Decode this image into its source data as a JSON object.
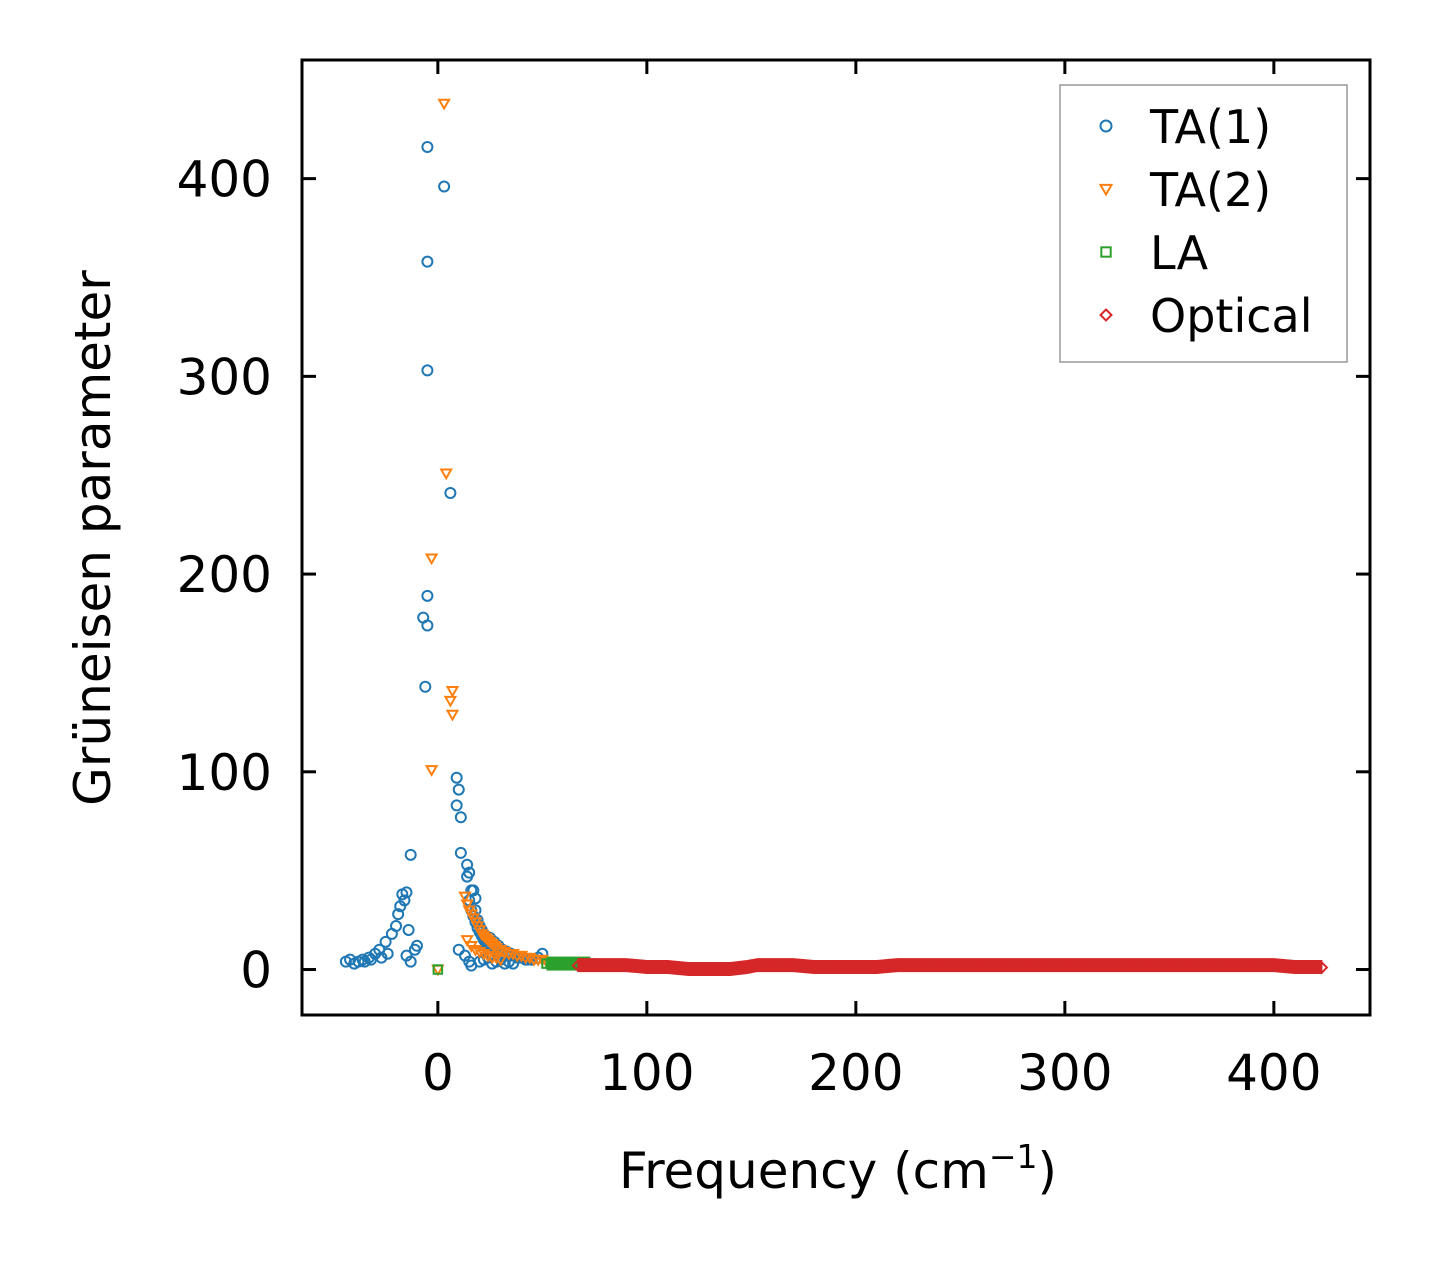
{
  "chart_data": {
    "type": "scatter",
    "title": "",
    "xlabel": "Frequency (cm",
    "xlabel_sup": "−1",
    "xlabel_close": ")",
    "ylabel": "Grüneisen parameter",
    "xlim": [
      -65,
      446
    ],
    "ylim": [
      -23,
      460
    ],
    "xticks": [
      0,
      100,
      200,
      300,
      400
    ],
    "xtick_labels": [
      "0",
      "100",
      "200",
      "300",
      "400"
    ],
    "yticks": [
      0,
      100,
      200,
      300,
      400
    ],
    "ytick_labels": [
      "0",
      "100",
      "200",
      "300",
      "400"
    ],
    "grid": false,
    "legend_position": "top-right",
    "series": [
      {
        "name": "TA(1)",
        "marker": "circle",
        "color": "#1f77b4",
        "x": [
          -5,
          3,
          -5,
          -5,
          6,
          -5,
          -7,
          -5,
          -6,
          9,
          10,
          9,
          11,
          11,
          14,
          15,
          14,
          16,
          17,
          18,
          -13,
          -15,
          -17,
          -16,
          -18,
          -19,
          -20,
          -14,
          -11,
          -15,
          -10,
          -13,
          -22,
          -25,
          -28,
          -30,
          -33,
          -36,
          -38,
          -42,
          -44,
          -40,
          -35,
          -32,
          -27,
          -24,
          10,
          13,
          15,
          16,
          18,
          19,
          20,
          21,
          22,
          23,
          24,
          25,
          26,
          27,
          28,
          30,
          31,
          33,
          35,
          38,
          40,
          42,
          45,
          48,
          50,
          20,
          22,
          24,
          26,
          28,
          30,
          32,
          34,
          36,
          25,
          27,
          29,
          31,
          33,
          35,
          37,
          39,
          41,
          43,
          45,
          15,
          16,
          17,
          18,
          19,
          20,
          21,
          22,
          23,
          24
        ],
        "y": [
          416,
          396,
          358,
          303,
          241,
          189,
          178,
          174,
          143,
          97,
          91,
          83,
          77,
          59,
          53,
          49,
          47,
          40,
          40,
          36,
          58,
          39,
          38,
          35,
          32,
          28,
          22,
          20,
          10,
          7,
          12,
          4,
          18,
          14,
          10,
          8,
          6,
          5,
          4,
          5,
          4,
          3,
          4,
          5,
          6,
          8,
          10,
          7,
          4,
          2,
          30,
          25,
          22,
          20,
          18,
          15,
          13,
          12,
          11,
          10,
          9,
          8,
          8,
          7,
          7,
          6,
          6,
          5,
          5,
          6,
          8,
          4,
          5,
          6,
          3,
          4,
          5,
          3,
          4,
          3,
          16,
          14,
          12,
          10,
          9,
          8,
          7,
          6,
          6,
          5,
          5,
          35,
          30,
          27,
          24,
          21,
          19,
          17,
          15,
          13,
          12
        ]
      },
      {
        "name": "TA(2)",
        "marker": "triangle-down",
        "color": "#ff7f0e",
        "x": [
          3,
          4,
          -3,
          7,
          6,
          7,
          -3,
          0,
          13,
          14,
          15,
          16,
          17,
          18,
          19,
          20,
          21,
          22,
          23,
          24,
          25,
          26,
          27,
          28,
          30,
          32,
          34,
          36,
          38,
          40,
          42,
          44,
          46,
          48,
          50,
          52,
          54,
          14,
          16,
          18,
          20,
          22,
          24,
          26,
          28,
          30
        ],
        "y": [
          438,
          251,
          208,
          141,
          136,
          129,
          101,
          0,
          37,
          33,
          30,
          28,
          26,
          24,
          22,
          20,
          18,
          17,
          16,
          15,
          14,
          13,
          12,
          11,
          10,
          9,
          8,
          8,
          7,
          7,
          6,
          6,
          5,
          5,
          5,
          4,
          4,
          15,
          12,
          10,
          9,
          8,
          7,
          6,
          6,
          5
        ]
      },
      {
        "name": "LA",
        "marker": "square",
        "color": "#2ca02c",
        "x": [
          0,
          52,
          54,
          56,
          58,
          60,
          62,
          64,
          66,
          68,
          70,
          72,
          73
        ],
        "y": [
          0,
          3,
          3,
          3,
          3,
          3,
          3,
          3,
          3,
          3,
          3,
          3,
          3
        ]
      },
      {
        "name": "Optical",
        "marker": "diamond",
        "color": "#d62728",
        "x": [
          67,
          80,
          90,
          100,
          110,
          120,
          130,
          140,
          148,
          153,
          160,
          170,
          180,
          190,
          200,
          210,
          220,
          230,
          240,
          250,
          260,
          270,
          280,
          290,
          300,
          310,
          320,
          330,
          340,
          350,
          360,
          370,
          380,
          390,
          400,
          410,
          423
        ],
        "y": [
          2,
          2,
          2,
          1,
          1,
          0,
          0,
          0,
          1,
          2,
          2,
          2,
          1,
          1,
          1,
          1,
          2,
          2,
          2,
          2,
          2,
          2,
          2,
          2,
          2,
          2,
          2,
          2,
          2,
          2,
          2,
          2,
          2,
          2,
          2,
          1,
          1
        ]
      }
    ]
  }
}
